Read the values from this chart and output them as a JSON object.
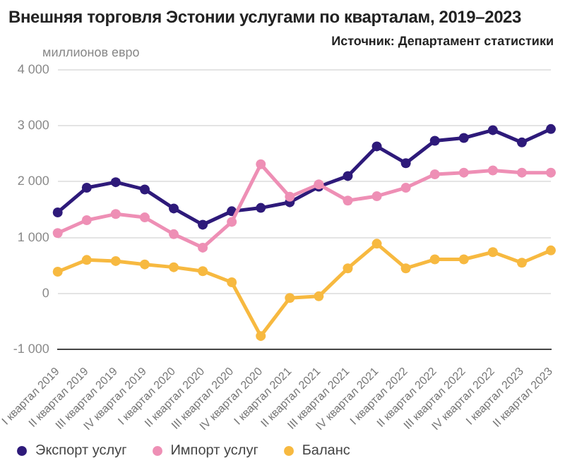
{
  "chart_data": {
    "type": "line",
    "title": "Внешняя торговля Эстонии услугами по кварталам, 2019–2023",
    "ylabel": "миллионов евро",
    "annotations": [
      "Источник: Департамент статистики"
    ],
    "categories": [
      "I квартал 2019",
      "II квартал 2019",
      "III квартал 2019",
      "IV квартал 2019",
      "I квартал 2020",
      "II квартал 2020",
      "III квартал 2020",
      "IV квартал 2020",
      "I квартал 2021",
      "II квартал 2021",
      "III квартал 2021",
      "IV квартал 2021",
      "I квартал 2022",
      "II квартал 2022",
      "III квартал 2022",
      "IV квартал 2022",
      "I квартал 2023",
      "II квартал 2023"
    ],
    "series": [
      {
        "name": "Экспорт услуг",
        "color": "#2e1a7a",
        "values": [
          1450,
          1890,
          1990,
          1860,
          1520,
          1230,
          1470,
          1530,
          1630,
          1910,
          2100,
          2630,
          2330,
          2730,
          2780,
          2920,
          2700,
          2940
        ]
      },
      {
        "name": "Импорт услуг",
        "color": "#ee8fb5",
        "values": [
          1080,
          1310,
          1420,
          1360,
          1060,
          820,
          1280,
          2310,
          1730,
          1950,
          1660,
          1740,
          1890,
          2130,
          2160,
          2200,
          2160,
          2160
        ]
      },
      {
        "name": "Баланс",
        "color": "#f7b940",
        "values": [
          390,
          600,
          580,
          520,
          470,
          400,
          200,
          -760,
          -80,
          -50,
          450,
          890,
          450,
          610,
          610,
          740,
          550,
          770
        ]
      }
    ],
    "ylim": [
      -1000,
      4000
    ],
    "yticks": [
      {
        "value": -1000,
        "label": "-1 000"
      },
      0,
      {
        "value": 1000,
        "label": "1 000"
      },
      {
        "value": 2000,
        "label": "2 000"
      },
      {
        "value": 3000,
        "label": "3 000"
      },
      {
        "value": 4000,
        "label": "4 000"
      }
    ],
    "grid": "y",
    "legend": "bottom left",
    "marker": "circle",
    "line_style": "solid"
  }
}
